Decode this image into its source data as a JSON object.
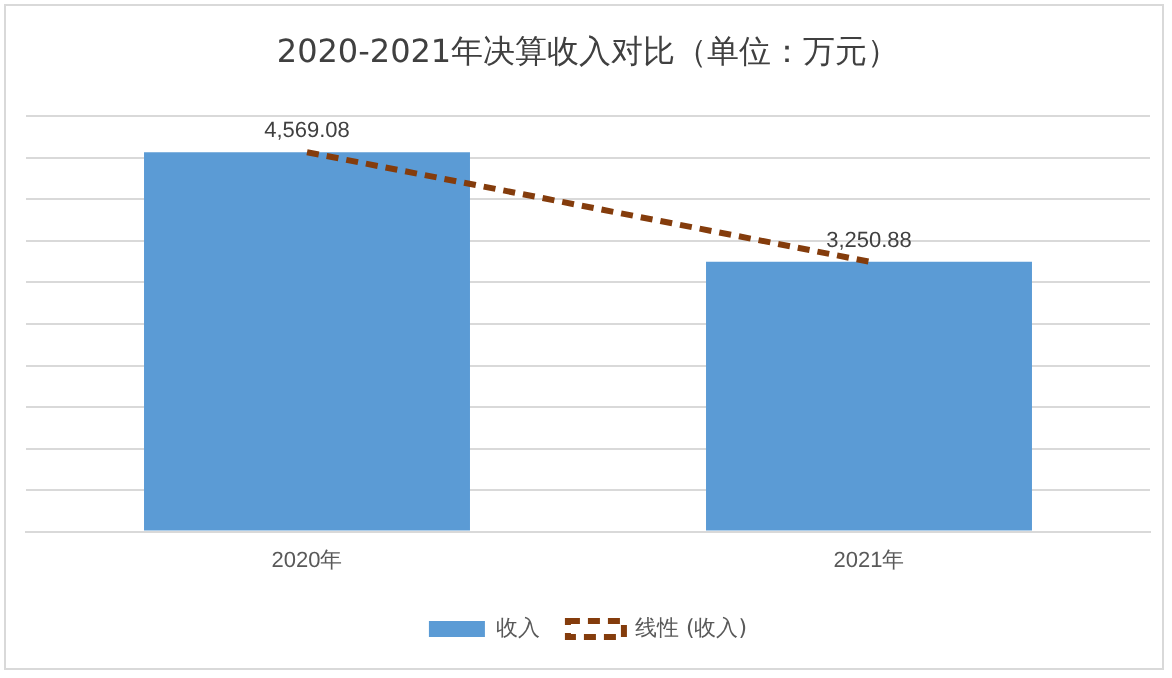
{
  "chart_data": {
    "type": "bar",
    "title": "2020-2021年决算收入对比（单位：万元）",
    "categories": [
      "2020年",
      "2021年"
    ],
    "series": [
      {
        "name": "收入",
        "color": "#5b9bd5",
        "values": [
          4569.08,
          3250.88
        ],
        "value_labels": [
          "4,569.08",
          "3,250.88"
        ]
      },
      {
        "name": "线性 (收入)",
        "type": "line",
        "color": "#843c0c",
        "values": [
          4569.08,
          3250.88
        ],
        "line_style": "dashed",
        "marker": "none"
      }
    ],
    "tick_labels": "x",
    "grid": "y",
    "legend": "bottom"
  }
}
